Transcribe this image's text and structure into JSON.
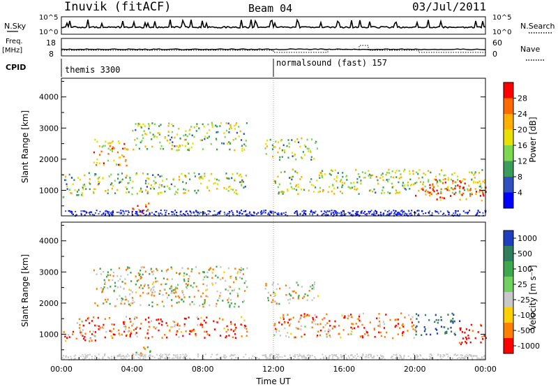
{
  "header": {
    "title": "Inuvik (fitACF)",
    "beam": "Beam 04",
    "date": "03/Jul/2011"
  },
  "top_panel": {
    "nsky_label": "N.Sky",
    "nsky_ticks": [
      "10^5",
      "10^0"
    ],
    "nsearch_label": "N.Search",
    "nsearch_ticks": [
      "10^5",
      "10^0"
    ],
    "freq_label": "Freq.",
    "freq_unit": "[MHz]",
    "freq_ticks": [
      "18",
      "8"
    ],
    "nave_label": "Nave",
    "nave_ticks": [
      "60",
      "0"
    ],
    "cpid_label": "CPID",
    "cpid_programs": [
      {
        "name": "themis 3300",
        "start_hour": 0
      },
      {
        "name": "normalsound (fast) 157",
        "start_hour": 12
      }
    ]
  },
  "chart_data": [
    {
      "type": "heatmap",
      "name": "power",
      "xlabel": "Time UT",
      "ylabel": "Slant Range [km]",
      "xlim": [
        0,
        24
      ],
      "ylim": [
        180,
        4600
      ],
      "x_ticks": [
        "00:00",
        "04:00",
        "08:00",
        "12:00",
        "16:00",
        "20:00",
        "00:00"
      ],
      "y_ticks": [
        1000,
        2000,
        3000,
        4000
      ],
      "colorbar_label": "Power [dB]",
      "colorbar_ticks": [
        "28",
        "24",
        "20",
        "16",
        "12",
        "8",
        "4"
      ],
      "colorbar_colors": [
        "#ff0000",
        "#ff6a00",
        "#ffb000",
        "#e8e000",
        "#7cd850",
        "#3c9c5c",
        "#3050c0",
        "#0000ff"
      ],
      "echo_regions": [
        {
          "t0": 0.0,
          "t1": 2.0,
          "r0": 800,
          "r1": 1600,
          "intensity": 0.45
        },
        {
          "t0": 1.8,
          "t1": 3.8,
          "r0": 1800,
          "r1": 2700,
          "intensity": 0.7
        },
        {
          "t0": 2.0,
          "t1": 10.5,
          "r0": 900,
          "r1": 1600,
          "intensity": 0.45
        },
        {
          "t0": 4.0,
          "t1": 5.0,
          "r0": 200,
          "r1": 700,
          "intensity": 1.0
        },
        {
          "t0": 4.0,
          "t1": 10.5,
          "r0": 2300,
          "r1": 3200,
          "intensity": 0.45
        },
        {
          "t0": 11.5,
          "t1": 14.5,
          "r0": 2000,
          "r1": 2700,
          "intensity": 0.45
        },
        {
          "t0": 12.0,
          "t1": 24.0,
          "r0": 900,
          "r1": 1700,
          "intensity": 0.5
        },
        {
          "t0": 20.0,
          "t1": 24.0,
          "r0": 700,
          "r1": 1400,
          "intensity": 0.9
        }
      ]
    },
    {
      "type": "heatmap",
      "name": "velocity",
      "xlabel": "Time UT",
      "ylabel": "Slant Range [km]",
      "xlim": [
        0,
        24
      ],
      "ylim": [
        180,
        4600
      ],
      "x_ticks": [
        "00:00",
        "04:00",
        "08:00",
        "12:00",
        "16:00",
        "20:00",
        "00:00"
      ],
      "y_ticks": [
        1000,
        2000,
        3000,
        4000
      ],
      "colorbar_label": "Velocity [m s⁻¹]",
      "colorbar_ticks": [
        "1000",
        "500",
        "100",
        "25",
        "-25",
        "-100",
        "-500",
        "-1000"
      ],
      "colorbar_colors": [
        "#1f3fc0",
        "#2f7f5f",
        "#3fa84f",
        "#70d060",
        "#c8c8c8",
        "#ffd000",
        "#ff8000",
        "#ff0000"
      ],
      "echo_regions": [
        {
          "t0": 0.0,
          "t1": 2.0,
          "r0": 800,
          "r1": 1600,
          "v": -200
        },
        {
          "t0": 1.8,
          "t1": 10.5,
          "r0": 1900,
          "r1": 3200,
          "v": 0
        },
        {
          "t0": 2.0,
          "t1": 10.5,
          "r0": 900,
          "r1": 1600,
          "v": -250
        },
        {
          "t0": 4.0,
          "t1": 5.0,
          "r0": 200,
          "r1": 700,
          "v": 0
        },
        {
          "t0": 11.5,
          "t1": 14.5,
          "r0": 2000,
          "r1": 2700,
          "v": 0
        },
        {
          "t0": 12.0,
          "t1": 20.0,
          "r0": 900,
          "r1": 1700,
          "v": -200
        },
        {
          "t0": 20.0,
          "t1": 22.5,
          "r0": 1000,
          "r1": 1700,
          "v": 600
        },
        {
          "t0": 22.5,
          "t1": 24.0,
          "r0": 700,
          "r1": 1400,
          "v": -400
        }
      ]
    }
  ]
}
